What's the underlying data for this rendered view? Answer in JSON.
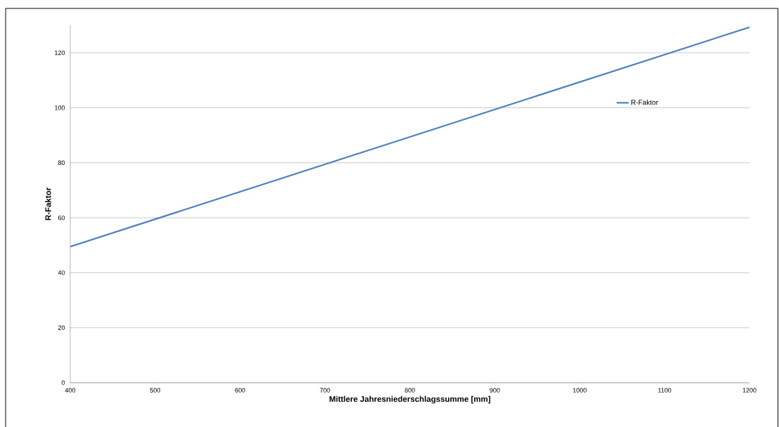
{
  "chart_data": {
    "type": "line",
    "xlabel": "Mittlere  Jahresniederschlagssumme  [mm]",
    "ylabel": "R-Faktor",
    "x": [
      400,
      1200
    ],
    "series": [
      {
        "name": "R-Faktor",
        "color": "#4f81bd",
        "values": [
          49.5,
          129.3
        ]
      }
    ],
    "xlim": [
      400,
      1200
    ],
    "xticks": [
      400,
      500,
      600,
      700,
      800,
      900,
      1000,
      1100,
      1200
    ],
    "ylim": [
      0,
      130
    ],
    "yticks": [
      0,
      20,
      40,
      60,
      80,
      100,
      120
    ],
    "grid": "y",
    "legend": "top right",
    "marker": "none",
    "line_style": "solid"
  }
}
